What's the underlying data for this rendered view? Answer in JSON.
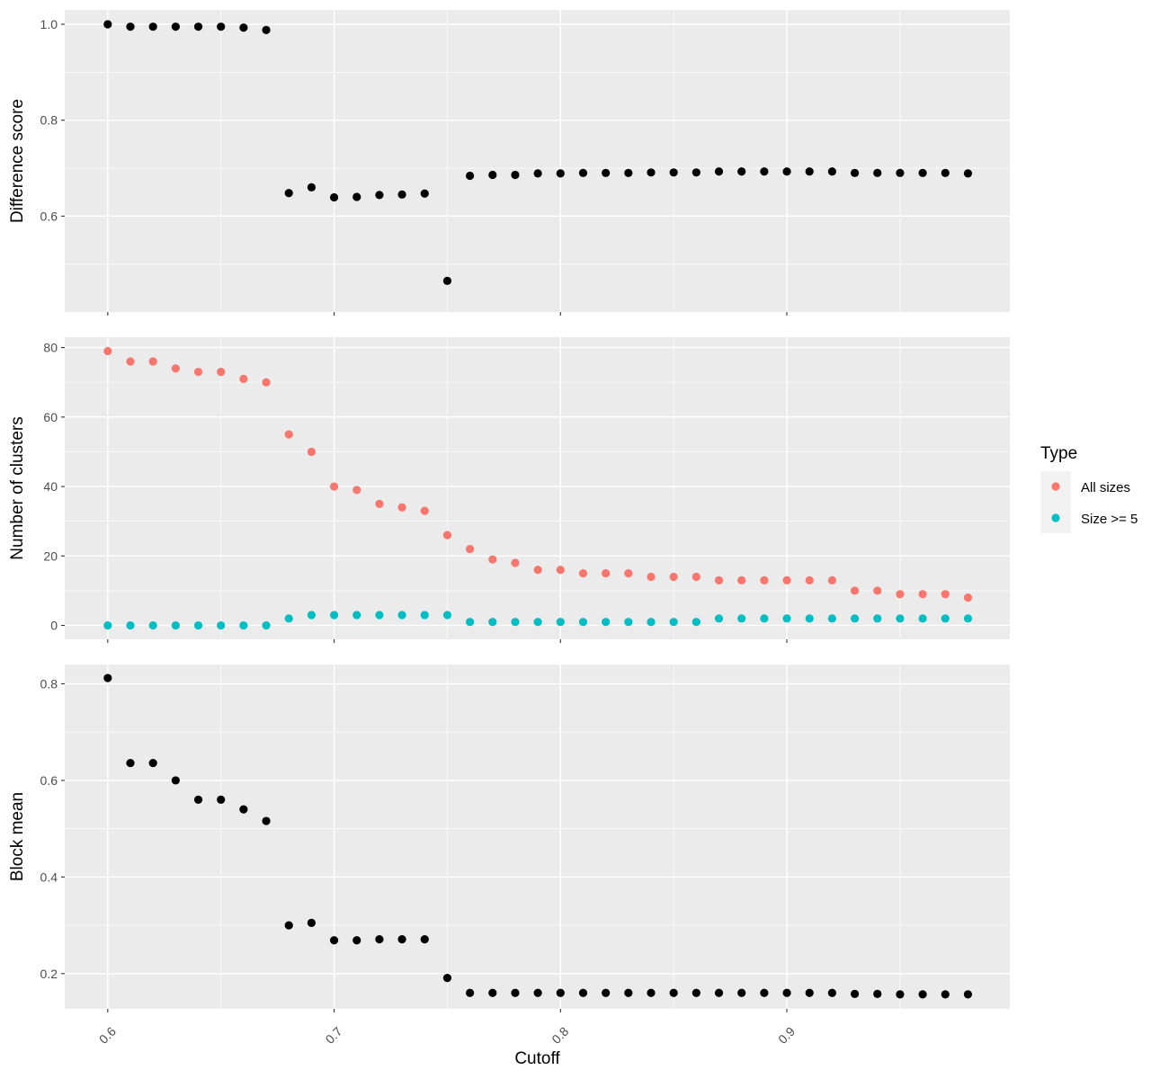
{
  "chart_data": [
    {
      "type": "scatter",
      "ylabel": "Difference score",
      "xlabel": "Cutoff",
      "xlim": [
        0.581,
        0.9985
      ],
      "ylim": [
        0.4,
        1.03
      ],
      "x_ticks": [
        "0.6",
        "0.7",
        "0.8",
        "0.9"
      ],
      "y_ticks": [
        "0.6",
        "0.8",
        "1.0"
      ],
      "x": [
        0.6,
        0.61,
        0.62,
        0.63,
        0.64,
        0.65,
        0.66,
        0.67,
        0.68,
        0.69,
        0.7,
        0.71,
        0.72,
        0.73,
        0.74,
        0.75,
        0.76,
        0.77,
        0.78,
        0.79,
        0.8,
        0.81,
        0.82,
        0.83,
        0.84,
        0.85,
        0.86,
        0.87,
        0.88,
        0.89,
        0.9,
        0.91,
        0.92,
        0.93,
        0.94,
        0.95,
        0.96,
        0.97,
        0.98
      ],
      "series": [
        {
          "color": "#000000",
          "values": [
            1.0,
            0.995,
            0.995,
            0.995,
            0.995,
            0.995,
            0.993,
            0.988,
            0.648,
            0.66,
            0.639,
            0.64,
            0.644,
            0.645,
            0.647,
            0.465,
            0.684,
            0.686,
            0.686,
            0.689,
            0.689,
            0.69,
            0.69,
            0.69,
            0.691,
            0.691,
            0.691,
            0.693,
            0.693,
            0.693,
            0.693,
            0.693,
            0.693,
            0.69,
            0.69,
            0.69,
            0.69,
            0.69,
            0.689
          ]
        }
      ]
    },
    {
      "type": "scatter",
      "ylabel": "Number of clusters",
      "xlabel": "Cutoff",
      "xlim": [
        0.581,
        0.9985
      ],
      "ylim": [
        -4,
        83
      ],
      "x_ticks": [
        "0.6",
        "0.7",
        "0.8",
        "0.9"
      ],
      "y_ticks": [
        "0",
        "20",
        "40",
        "60",
        "80"
      ],
      "x": [
        0.6,
        0.61,
        0.62,
        0.63,
        0.64,
        0.65,
        0.66,
        0.67,
        0.68,
        0.69,
        0.7,
        0.71,
        0.72,
        0.73,
        0.74,
        0.75,
        0.76,
        0.77,
        0.78,
        0.79,
        0.8,
        0.81,
        0.82,
        0.83,
        0.84,
        0.85,
        0.86,
        0.87,
        0.88,
        0.89,
        0.9,
        0.91,
        0.92,
        0.93,
        0.94,
        0.95,
        0.96,
        0.97,
        0.98
      ],
      "legend": {
        "title": "Type",
        "position": "right"
      },
      "series": [
        {
          "name": "All sizes",
          "color": "#F8766D",
          "values": [
            79,
            76,
            76,
            74,
            73,
            73,
            71,
            70,
            55,
            50,
            40,
            39,
            35,
            34,
            33,
            26,
            22,
            19,
            18,
            16,
            16,
            15,
            15,
            15,
            14,
            14,
            14,
            13,
            13,
            13,
            13,
            13,
            13,
            10,
            10,
            9,
            9,
            9,
            8
          ]
        },
        {
          "name": "Size >= 5",
          "color": "#00BFC4",
          "values": [
            0,
            0,
            0,
            0,
            0,
            0,
            0,
            0,
            2,
            3,
            3,
            3,
            3,
            3,
            3,
            3,
            1,
            1,
            1,
            1,
            1,
            1,
            1,
            1,
            1,
            1,
            1,
            2,
            2,
            2,
            2,
            2,
            2,
            2,
            2,
            2,
            2,
            2,
            2
          ]
        }
      ]
    },
    {
      "type": "scatter",
      "ylabel": "Block mean",
      "xlabel": "Cutoff",
      "xlim": [
        0.581,
        0.9985
      ],
      "ylim": [
        0.127,
        0.84
      ],
      "x_ticks": [
        "0.6",
        "0.7",
        "0.8",
        "0.9"
      ],
      "y_ticks": [
        "0.2",
        "0.4",
        "0.6",
        "0.8"
      ],
      "x": [
        0.6,
        0.61,
        0.62,
        0.63,
        0.64,
        0.65,
        0.66,
        0.67,
        0.68,
        0.69,
        0.7,
        0.71,
        0.72,
        0.73,
        0.74,
        0.75,
        0.76,
        0.77,
        0.78,
        0.79,
        0.8,
        0.81,
        0.82,
        0.83,
        0.84,
        0.85,
        0.86,
        0.87,
        0.88,
        0.89,
        0.9,
        0.91,
        0.92,
        0.93,
        0.94,
        0.95,
        0.96,
        0.97,
        0.98
      ],
      "series": [
        {
          "color": "#000000",
          "values": [
            0.812,
            0.636,
            0.636,
            0.6,
            0.56,
            0.56,
            0.54,
            0.516,
            0.3,
            0.305,
            0.269,
            0.269,
            0.271,
            0.271,
            0.271,
            0.191,
            0.16,
            0.16,
            0.16,
            0.16,
            0.16,
            0.16,
            0.16,
            0.16,
            0.16,
            0.16,
            0.16,
            0.16,
            0.16,
            0.16,
            0.16,
            0.16,
            0.16,
            0.158,
            0.158,
            0.157,
            0.157,
            0.157,
            0.157
          ]
        }
      ]
    }
  ]
}
